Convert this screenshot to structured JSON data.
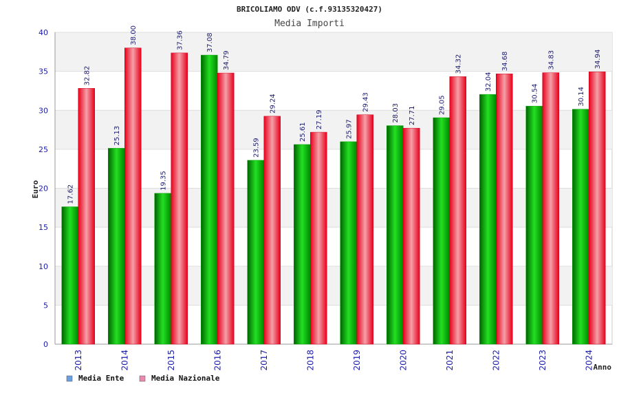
{
  "chart_data": {
    "type": "bar",
    "title": "BRICOLIAMO ODV (c.f.93135320427)",
    "subtitle": "Media Importi",
    "xlabel": "Anno",
    "ylabel": "Euro",
    "ylim": [
      0,
      40
    ],
    "yticks": [
      0,
      5,
      10,
      15,
      20,
      25,
      30,
      35,
      40
    ],
    "categories": [
      "2013",
      "2014",
      "2015",
      "2016",
      "2017",
      "2018",
      "2019",
      "2020",
      "2021",
      "2022",
      "2023",
      "2024"
    ],
    "series": [
      {
        "name": "Media Ente",
        "color": "#00c000",
        "legend_color": "#6aa0e0",
        "values": [
          17.62,
          25.13,
          19.35,
          37.08,
          23.59,
          25.61,
          25.97,
          28.03,
          29.05,
          32.04,
          30.54,
          30.14
        ],
        "labels": [
          "17.62",
          "25.13",
          "19.35",
          "37.08",
          "23.59",
          "25.61",
          "25.97",
          "28.03",
          "29.05",
          "32.04",
          "30.54",
          "30.14"
        ]
      },
      {
        "name": "Media Nazionale",
        "color": "#ee1c24",
        "legend_color": "#e88ab0",
        "values": [
          32.82,
          38.0,
          37.36,
          34.79,
          29.24,
          27.19,
          29.43,
          27.71,
          34.32,
          34.68,
          34.83,
          34.94
        ],
        "labels": [
          "32.82",
          "38.00",
          "37.36",
          "34.79",
          "29.24",
          "27.19",
          "29.43",
          "27.71",
          "34.32",
          "34.68",
          "34.83",
          "34.94"
        ]
      }
    ],
    "grid": true,
    "legend_position": "bottom-left"
  }
}
